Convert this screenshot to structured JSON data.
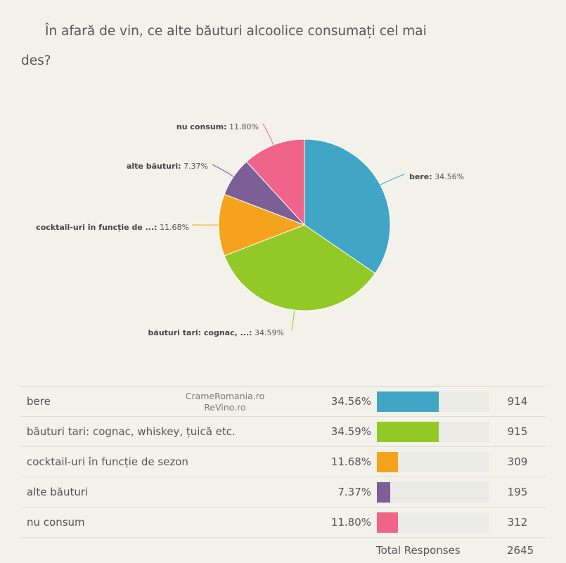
{
  "question": "În afară de vin, ce alte băuturi alcoolice consumați cel mai des?",
  "chart_data": {
    "type": "pie",
    "slices": [
      {
        "short": "bere",
        "full": "bere",
        "percent": 34.56,
        "percent_label": "34.56%",
        "count": 914,
        "color": "#41a6c6"
      },
      {
        "short": "băuturi tari: cognac, ...",
        "full": "băuturi tari: cognac, whiskey, țuică etc.",
        "percent": 34.59,
        "percent_label": "34.59%",
        "count": 915,
        "color": "#93c926"
      },
      {
        "short": "cocktail-uri în funcție de ...",
        "full": "cocktail-uri în funcție de sezon",
        "percent": 11.68,
        "percent_label": "11.68%",
        "count": 309,
        "color": "#f5a31d"
      },
      {
        "short": "alte băuturi",
        "full": "alte băuturi",
        "percent": 7.37,
        "percent_label": "7.37%",
        "count": 195,
        "color": "#7c5f96"
      },
      {
        "short": "nu consum",
        "full": "nu consum",
        "percent": 11.8,
        "percent_label": "11.80%",
        "count": 312,
        "color": "#f0648a"
      }
    ]
  },
  "watermark": {
    "line1": "CrameRomania.ro",
    "line2": "ReVino.ro"
  },
  "total": {
    "label": "Total Responses",
    "value": "2645"
  }
}
